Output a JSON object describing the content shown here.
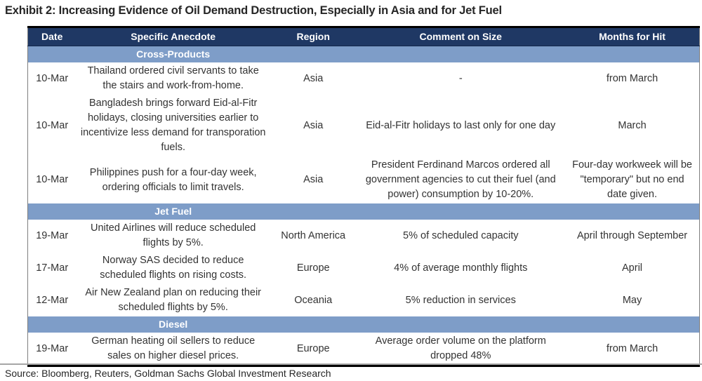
{
  "title": "Exhibit 2: Increasing Evidence of Oil Demand Destruction, Especially in Asia and for Jet Fuel",
  "source": "Source: Bloomberg, Reuters, Goldman Sachs Global Investment Research",
  "colors": {
    "header_bg": "#1F3864",
    "section_bg": "#7E9DC8",
    "table_border": "#000000",
    "side_border": "#7f7f7f",
    "body_text": "#333333"
  },
  "table": {
    "columns": [
      "Date",
      "Specific Anecdote",
      "Region",
      "Comment on Size",
      "Months for Hit"
    ],
    "column_widths_pct": [
      7.2,
      28.9,
      12.8,
      31.1,
      20.0
    ],
    "sections": [
      {
        "name": "Cross-Products",
        "rows": [
          {
            "date": "10-Mar",
            "anecdote": "Thailand ordered civil servants to take the stairs and work-from-home.",
            "region": "Asia",
            "comment": "-",
            "months": "from March"
          },
          {
            "date": "10-Mar",
            "anecdote": "Bangladesh brings forward Eid-al-Fitr holidays, closing universities earlier to incentivize less demand for transporation fuels.",
            "region": "Asia",
            "comment": "Eid-al-Fitr holidays to last only for one day",
            "months": "March"
          },
          {
            "date": "10-Mar",
            "anecdote": "Philippines push for a four-day week, ordering officials to limit travels.",
            "region": "Asia",
            "comment": "President Ferdinand Marcos ordered all government agencies to cut their fuel (and power) consumption by 10-20%.",
            "months": "Four-day workweek will be \"temporary\" but no end date given."
          }
        ]
      },
      {
        "name": "Jet Fuel",
        "rows": [
          {
            "date": "19-Mar",
            "anecdote": "United Airlines will reduce scheduled flights by 5%.",
            "region": "North America",
            "comment": "5% of scheduled capacity",
            "months": "April through September"
          },
          {
            "date": "17-Mar",
            "anecdote": "Norway SAS decided to reduce scheduled flights on rising costs.",
            "region": "Europe",
            "comment": "4% of average monthly flights",
            "months": "April"
          },
          {
            "date": "12-Mar",
            "anecdote": "Air New Zealand plan on reducing their scheduled flights by 5%.",
            "region": "Oceania",
            "comment": "5% reduction in services",
            "months": "May"
          }
        ]
      },
      {
        "name": "Diesel",
        "rows": [
          {
            "date": "19-Mar",
            "anecdote": "German heating oil sellers to reduce sales on higher diesel prices.",
            "region": "Europe",
            "comment": "Average order volume on the platform dropped 48%",
            "months": "from March"
          }
        ]
      }
    ]
  }
}
